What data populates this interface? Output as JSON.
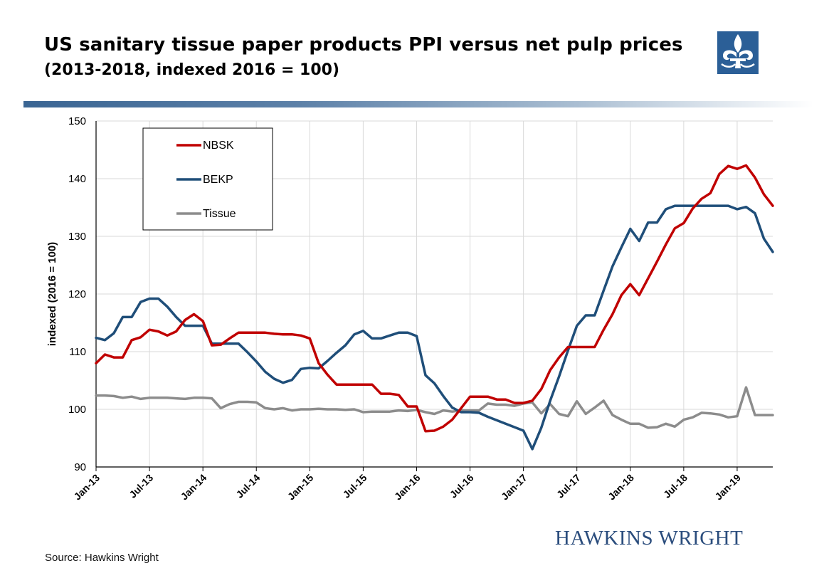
{
  "header": {
    "title": "US sanitary tissue paper products PPI versus net pulp prices",
    "subtitle": "(2013-2018, indexed 2016 = 100)"
  },
  "branding": {
    "logo_icon": "fleur-de-lis-icon",
    "name": "HAWKINS WRIGHT",
    "color": "#2b4d7d"
  },
  "footer": {
    "source": "Source: Hawkins Wright"
  },
  "chart_data": {
    "type": "line",
    "ylabel": "indexed (2016 = 100)",
    "xlabel": "",
    "ylim": [
      90,
      150
    ],
    "yticks": [
      90,
      100,
      110,
      120,
      130,
      140,
      150
    ],
    "grid": true,
    "legend_position": "top-left",
    "x": [
      "Jan-13",
      "Feb-13",
      "Mar-13",
      "Apr-13",
      "May-13",
      "Jun-13",
      "Jul-13",
      "Aug-13",
      "Sep-13",
      "Oct-13",
      "Nov-13",
      "Dec-13",
      "Jan-14",
      "Feb-14",
      "Mar-14",
      "Apr-14",
      "May-14",
      "Jun-14",
      "Jul-14",
      "Aug-14",
      "Sep-14",
      "Oct-14",
      "Nov-14",
      "Dec-14",
      "Jan-15",
      "Feb-15",
      "Mar-15",
      "Apr-15",
      "May-15",
      "Jun-15",
      "Jul-15",
      "Aug-15",
      "Sep-15",
      "Oct-15",
      "Nov-15",
      "Dec-15",
      "Jan-16",
      "Feb-16",
      "Mar-16",
      "Apr-16",
      "May-16",
      "Jun-16",
      "Jul-16",
      "Aug-16",
      "Sep-16",
      "Oct-16",
      "Nov-16",
      "Dec-16",
      "Jan-17",
      "Feb-17",
      "Mar-17",
      "Apr-17",
      "May-17",
      "Jun-17",
      "Jul-17",
      "Aug-17",
      "Sep-17",
      "Oct-17",
      "Nov-17",
      "Dec-17",
      "Jan-18",
      "Feb-18",
      "Mar-18",
      "Apr-18",
      "May-18",
      "Jun-18",
      "Jul-18",
      "Aug-18",
      "Sep-18",
      "Oct-18",
      "Nov-18",
      "Dec-18",
      "Jan-19",
      "Feb-19",
      "Mar-19",
      "Apr-19",
      "May-19"
    ],
    "tick_labels": [
      "Jan-13",
      "Jul-13",
      "Jan-14",
      "Jul-14",
      "Jan-15",
      "Jul-15",
      "Jan-16",
      "Jul-16",
      "Jan-17",
      "Jul-17",
      "Jan-18",
      "Jul-18",
      "Jan-19"
    ],
    "series": [
      {
        "name": "NBSK",
        "color": "#c00000",
        "values": [
          108,
          109.5,
          109,
          109,
          112,
          112.5,
          113.8,
          113.5,
          112.8,
          113.5,
          115.5,
          116.5,
          115.3,
          111.1,
          111.2,
          112.3,
          113.3,
          113.3,
          113.3,
          113.3,
          113.1,
          113,
          113,
          112.8,
          112.3,
          108,
          106,
          104.3,
          104.3,
          104.3,
          104.3,
          104.3,
          102.7,
          102.7,
          102.5,
          100.5,
          100.5,
          96.2,
          96.3,
          97,
          98.2,
          100.2,
          102.2,
          102.2,
          102.2,
          101.7,
          101.7,
          101.1,
          101.1,
          101.5,
          103.5,
          106.8,
          109,
          110.8,
          110.8,
          110.8,
          110.8,
          113.8,
          116.5,
          119.8,
          121.7,
          119.8,
          122.7,
          125.6,
          128.6,
          131.4,
          132.3,
          134.8,
          136.5,
          137.5,
          140.8,
          142.2,
          141.7,
          142.3,
          140.2,
          137.3,
          135.3
        ]
      },
      {
        "name": "BEKP",
        "color": "#1f4e79",
        "values": [
          112.4,
          112,
          113.2,
          116,
          116,
          118.6,
          119.2,
          119.2,
          117.8,
          116,
          114.5,
          114.5,
          114.5,
          111.4,
          111.4,
          111.4,
          111.4,
          109.9,
          108.3,
          106.5,
          105.3,
          104.6,
          105.1,
          107,
          107.2,
          107.1,
          108.4,
          109.8,
          111.1,
          113,
          113.6,
          112.3,
          112.3,
          112.8,
          113.3,
          113.3,
          112.7,
          105.9,
          104.5,
          102.3,
          100.3,
          99.5,
          99.5,
          99.4,
          98.7,
          98.1,
          97.5,
          96.9,
          96.3,
          93.1,
          96.8,
          101.5,
          105.7,
          110.2,
          114.5,
          116.3,
          116.3,
          120.6,
          124.8,
          128.1,
          131.3,
          129.2,
          132.4,
          132.4,
          134.7,
          135.3,
          135.3,
          135.3,
          135.3,
          135.3,
          135.3,
          135.3,
          134.7,
          135.1,
          134,
          129.6,
          127.3
        ]
      },
      {
        "name": "Tissue",
        "color": "#8c8c8c",
        "values": [
          102.4,
          102.4,
          102.3,
          102,
          102.2,
          101.8,
          102,
          102,
          102,
          101.9,
          101.8,
          102,
          102,
          101.9,
          100.2,
          100.9,
          101.3,
          101.3,
          101.2,
          100.2,
          100,
          100.2,
          99.8,
          100,
          100,
          100.1,
          100,
          100,
          99.9,
          100,
          99.5,
          99.6,
          99.6,
          99.6,
          99.8,
          99.7,
          99.9,
          99.5,
          99.2,
          99.8,
          99.6,
          99.8,
          99.8,
          99.8,
          101,
          100.8,
          100.8,
          100.6,
          101,
          101.2,
          99.3,
          100.9,
          99.2,
          98.8,
          101.4,
          99.2,
          100.3,
          101.5,
          99,
          98.2,
          97.5,
          97.5,
          96.8,
          96.9,
          97.5,
          97,
          98.2,
          98.6,
          99.4,
          99.3,
          99.1,
          98.6,
          98.8,
          103.8,
          99,
          99,
          99
        ]
      }
    ]
  }
}
